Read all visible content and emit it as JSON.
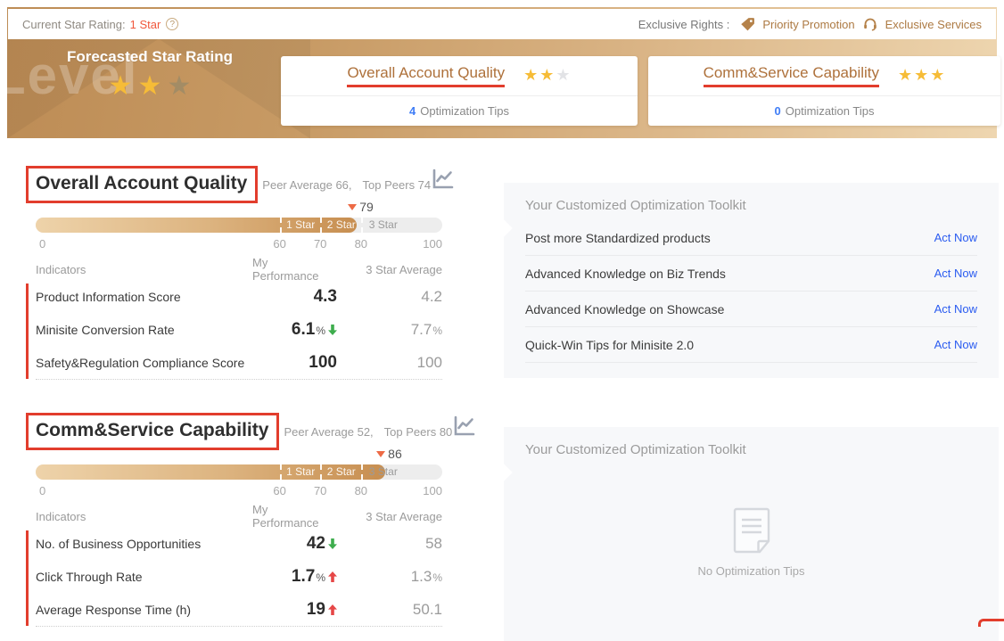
{
  "topbar": {
    "current_label": "Current Star Rating:",
    "current_value": "1 Star",
    "help": "?",
    "rights_label": "Exclusive Rights :",
    "right1": "Priority Promotion",
    "right2": "Exclusive Services"
  },
  "hero": {
    "watermark": "Level",
    "forecast_title": "Forecasted Star Rating",
    "forecast_stars_filled": 2,
    "forecast_stars_total": 3,
    "card1": {
      "title": "Overall Account Quality",
      "stars_filled": 2,
      "stars_total": 3,
      "tips_count": "4",
      "tips_label": "Optimization Tips"
    },
    "card2": {
      "title": "Comm&Service Capability",
      "stars_filled": 3,
      "stars_total": 3,
      "tips_count": "0",
      "tips_label": "Optimization Tips"
    }
  },
  "section1": {
    "title": "Overall Account Quality",
    "peer_average": "Peer Average 66,",
    "top_peers": "Top Peers 74",
    "score": "79",
    "fill_percent": 79,
    "bar": {
      "seg1": "1 Star",
      "seg2": "2 Star",
      "seg3": "3 Star",
      "tick0": "0",
      "tick60": "60",
      "tick70": "70",
      "tick80": "80",
      "tick100": "100"
    },
    "col_indicators": "Indicators",
    "col_mine": "My Performance",
    "col_avg": "3 Star Average",
    "rows": [
      {
        "label": "Product Information Score",
        "mine": "4.3",
        "mine_suffix": "",
        "trend": "none",
        "avg": "4.2",
        "avg_suffix": ""
      },
      {
        "label": "Minisite Conversion Rate",
        "mine": "6.1",
        "mine_suffix": "%",
        "trend": "down-green",
        "avg": "7.7",
        "avg_suffix": "%"
      },
      {
        "label": "Safety&Regulation Compliance Score",
        "mine": "100",
        "mine_suffix": "",
        "trend": "none",
        "avg": "100",
        "avg_suffix": ""
      }
    ],
    "toolkit": {
      "title": "Your Customized Optimization Toolkit",
      "items": [
        {
          "label": "Post more Standardized products",
          "action": "Act Now"
        },
        {
          "label": "Advanced Knowledge on Biz Trends",
          "action": "Act Now"
        },
        {
          "label": "Advanced Knowledge on Showcase",
          "action": "Act Now"
        },
        {
          "label": "Quick-Win Tips for Minisite 2.0",
          "action": "Act Now"
        }
      ]
    }
  },
  "section2": {
    "title": "Comm&Service Capability",
    "peer_average": "Peer Average 52,",
    "top_peers": "Top Peers 80",
    "score": "86",
    "fill_percent": 86,
    "bar": {
      "seg1": "1 Star",
      "seg2": "2 Star",
      "seg3": "3 Star",
      "tick0": "0",
      "tick60": "60",
      "tick70": "70",
      "tick80": "80",
      "tick100": "100"
    },
    "col_indicators": "Indicators",
    "col_mine": "My Performance",
    "col_avg": "3 Star Average",
    "rows": [
      {
        "label": "No. of Business Opportunities",
        "mine": "42",
        "mine_suffix": "",
        "trend": "down-green",
        "avg": "58",
        "avg_suffix": ""
      },
      {
        "label": "Click Through Rate",
        "mine": "1.7",
        "mine_suffix": "%",
        "trend": "up-red",
        "avg": "1.3",
        "avg_suffix": "%"
      },
      {
        "label": "Average Response Time (h)",
        "mine": "19",
        "mine_suffix": "",
        "trend": "up-red",
        "avg": "50.1",
        "avg_suffix": ""
      }
    ],
    "toolkit": {
      "title": "Your Customized Optimization Toolkit",
      "empty_text": "No Optimization Tips"
    }
  },
  "colors": {
    "accent_gold": "#f6bc37",
    "band_bronze": "#bd8c55",
    "annotation_red": "#e23d2d",
    "link_blue": "#2b5cf0",
    "count_blue": "#3f7df6",
    "trend_green": "#3ead4d",
    "trend_red": "#e64747",
    "marker_orange": "#ed6a45"
  }
}
